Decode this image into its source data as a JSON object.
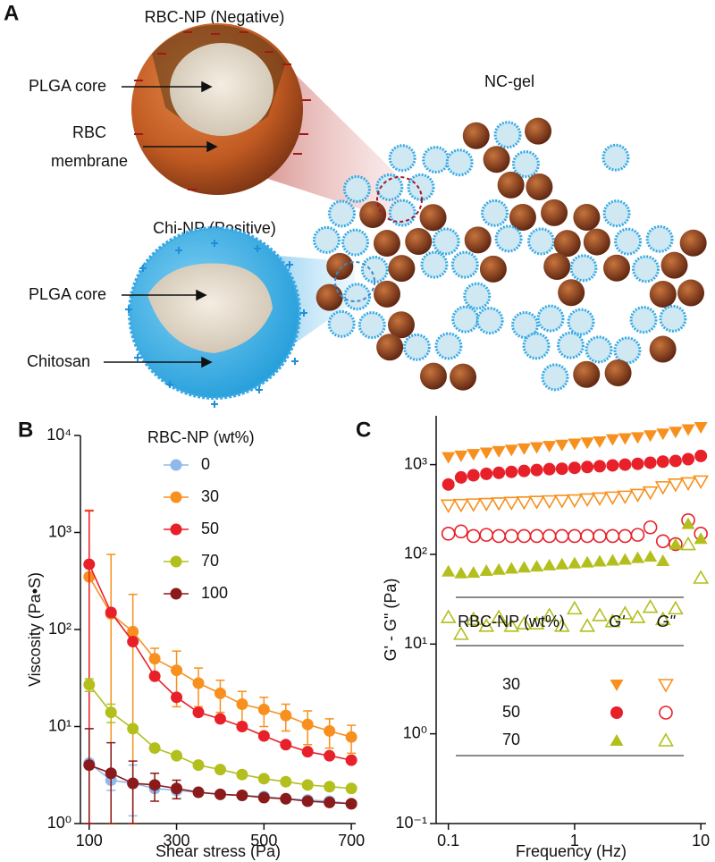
{
  "diagram": {
    "panel_label": "A",
    "rbc_np": {
      "title": "RBC-NP (Negative)",
      "core": "PLGA core",
      "membrane": [
        "RBC",
        "membrane"
      ]
    },
    "chi_np": {
      "title": "Chi-NP (Positive)",
      "core": "PLGA core",
      "shell": "Chitosan"
    },
    "gel": {
      "title": "NC-gel"
    }
  },
  "chart_data": [
    {
      "type": "line",
      "panel_label": "B",
      "xlabel": "Shear stress (Pa)",
      "ylabel": "Viscosity (Pa•S)",
      "x": [
        100,
        150,
        200,
        250,
        300,
        350,
        400,
        450,
        500,
        550,
        600,
        650,
        700
      ],
      "xlim": [
        80,
        710
      ],
      "xticks": [
        100,
        300,
        500,
        700
      ],
      "ylim": [
        1,
        10000
      ],
      "log_y": true,
      "yticks": [
        {
          "value": 1,
          "label": "10⁰"
        },
        {
          "value": 10,
          "label": "10¹"
        },
        {
          "value": 100,
          "label": "10²"
        },
        {
          "value": 1000,
          "label": "10³"
        },
        {
          "value": 10000,
          "label": "10⁴"
        }
      ],
      "legend": "upper right",
      "legend_title": "RBC-NP (wt%)",
      "series": [
        {
          "name": "0",
          "color": "#8fb8ec",
          "values": [
            4.2,
            2.8,
            2.6,
            2.3,
            2.2,
            2.1,
            2.0,
            1.95,
            1.9,
            1.8,
            1.75,
            1.7,
            1.6
          ],
          "errors": [
            5.3,
            0.6,
            1.4,
            null,
            null,
            null,
            null,
            null,
            null,
            null,
            null,
            null,
            null
          ]
        },
        {
          "name": "30",
          "color": "#f7901e",
          "values": [
            350,
            145,
            95,
            50,
            38,
            28,
            22,
            17,
            15,
            13,
            10.5,
            9,
            7.8
          ],
          "errors": [
            1350,
            450,
            135,
            14,
            22,
            12,
            8,
            6,
            5,
            4,
            4,
            3,
            2.5
          ]
        },
        {
          "name": "50",
          "color": "#e8202a",
          "values": [
            470,
            150,
            75,
            33,
            20,
            14,
            12,
            10,
            8,
            6.5,
            5.5,
            5,
            4.5
          ],
          "errors": [
            1200,
            null,
            null,
            null,
            null,
            null,
            null,
            null,
            null,
            null,
            null,
            null,
            null
          ]
        },
        {
          "name": "70",
          "color": "#b3bf1d",
          "values": [
            27,
            14,
            9.5,
            6,
            5,
            4,
            3.6,
            3.2,
            2.9,
            2.7,
            2.5,
            2.4,
            2.3
          ],
          "errors": [
            4,
            3,
            null,
            null,
            null,
            null,
            null,
            null,
            null,
            null,
            null,
            null,
            null
          ]
        },
        {
          "name": "100",
          "color": "#8b1a1a",
          "values": [
            4,
            3.3,
            2.6,
            2.5,
            2.3,
            2.1,
            2.0,
            1.95,
            1.85,
            1.8,
            1.7,
            1.65,
            1.6
          ],
          "errors": [
            5.5,
            3.5,
            1.8,
            0.8,
            0.5,
            null,
            null,
            null,
            null,
            null,
            null,
            null,
            null
          ]
        }
      ]
    },
    {
      "type": "scatter",
      "panel_label": "C",
      "xlabel": "Frequency (Hz)",
      "ylabel": "G' - G\" (Pa)",
      "x": [
        0.1,
        0.126,
        0.158,
        0.2,
        0.251,
        0.316,
        0.398,
        0.501,
        0.631,
        0.794,
        1,
        1.26,
        1.58,
        2,
        2.51,
        3.16,
        3.98,
        5.01,
        6.31,
        7.94,
        10
      ],
      "xlim": [
        0.08,
        11
      ],
      "xticks": [
        0.1,
        1,
        10
      ],
      "log_x": true,
      "ylim": [
        0.1,
        3500
      ],
      "log_y": true,
      "yticks": [
        {
          "value": 0.1,
          "label": "10⁻¹"
        },
        {
          "value": 1,
          "label": "10⁰"
        },
        {
          "value": 10,
          "label": "10¹"
        },
        {
          "value": 100,
          "label": "10²"
        },
        {
          "value": 1000,
          "label": "10³"
        }
      ],
      "legend": "lower center",
      "legend_title": "RBC-NP (wt%)",
      "value_names": [
        "G'",
        "G\""
      ],
      "series": [
        {
          "name": "30",
          "color": "#f7901e",
          "marker": "triangle-down",
          "values": [
            1200,
            1250,
            1300,
            1350,
            1400,
            1450,
            1500,
            1550,
            1600,
            1650,
            1700,
            1750,
            1800,
            1900,
            1950,
            2000,
            2100,
            2200,
            2300,
            2450,
            2600
          ],
          "values2": [
            350,
            355,
            360,
            365,
            370,
            375,
            380,
            385,
            390,
            395,
            400,
            410,
            420,
            430,
            440,
            460,
            490,
            560,
            600,
            620,
            650
          ]
        },
        {
          "name": "50",
          "color": "#e8202a",
          "marker": "circle",
          "values": [
            600,
            720,
            760,
            790,
            810,
            830,
            850,
            870,
            890,
            900,
            920,
            940,
            960,
            980,
            1000,
            1020,
            1050,
            1080,
            1100,
            1150,
            1250
          ],
          "values2": [
            170,
            180,
            160,
            165,
            160,
            160,
            160,
            160,
            160,
            160,
            160,
            160,
            160,
            160,
            160,
            165,
            200,
            140,
            130,
            240,
            170
          ]
        },
        {
          "name": "70",
          "color": "#b3bf1d",
          "marker": "triangle-up",
          "values": [
            65,
            62,
            63,
            66,
            68,
            70,
            72,
            74,
            76,
            78,
            80,
            82,
            84,
            86,
            88,
            92,
            95,
            85,
            130,
            220,
            150
          ],
          "values2": [
            20,
            13,
            19,
            16,
            20,
            16,
            17,
            17,
            21,
            16,
            25,
            16,
            21,
            18,
            22,
            20,
            26,
            19,
            25,
            130,
            55
          ]
        }
      ]
    }
  ]
}
